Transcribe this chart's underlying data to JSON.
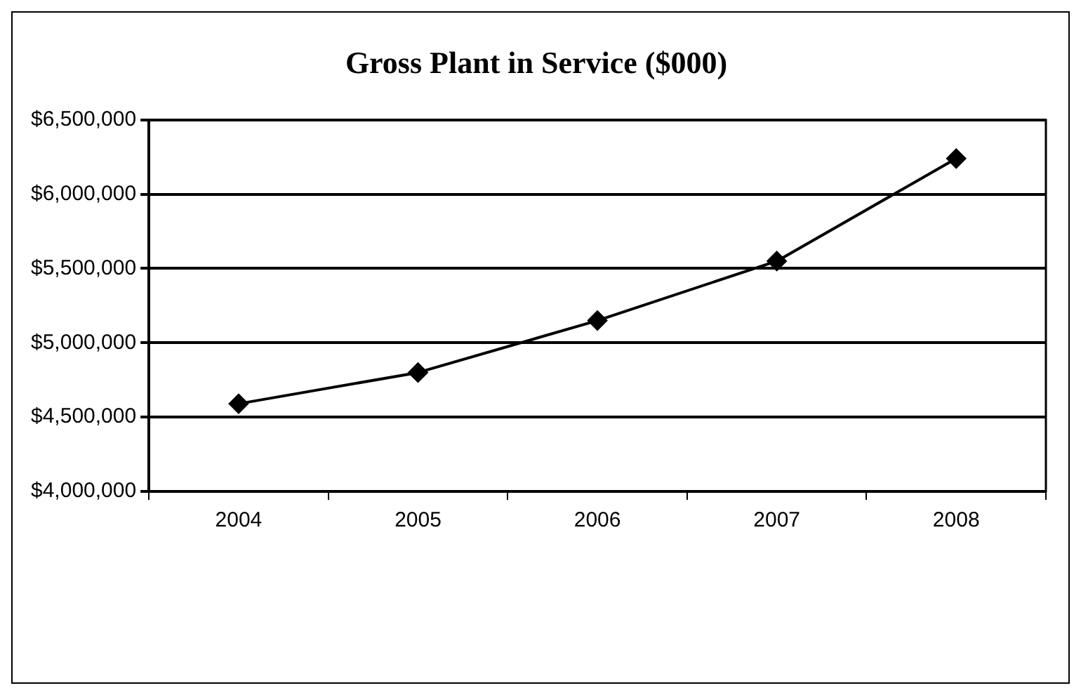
{
  "chart_data": {
    "type": "line",
    "title": "Gross Plant in Service ($000)",
    "categories": [
      "2004",
      "2005",
      "2006",
      "2007",
      "2008"
    ],
    "series": [
      {
        "color": "#000000",
        "values": [
          4590000,
          4800000,
          5150000,
          5550000,
          6240000
        ]
      }
    ],
    "ylim": [
      4000000,
      6500000
    ],
    "yticks": [
      {
        "value": 4000000,
        "label": "$4,000,000"
      },
      {
        "value": 4500000,
        "label": "$4,500,000"
      },
      {
        "value": 5000000,
        "label": "$5,000,000"
      },
      {
        "value": 5500000,
        "label": "$5,500,000"
      },
      {
        "value": 6000000,
        "label": "$6,000,000"
      },
      {
        "value": 6500000,
        "label": "$6,500,000"
      }
    ],
    "grid": "y",
    "legend": false,
    "marker": "diamond",
    "line_style": "solid"
  }
}
